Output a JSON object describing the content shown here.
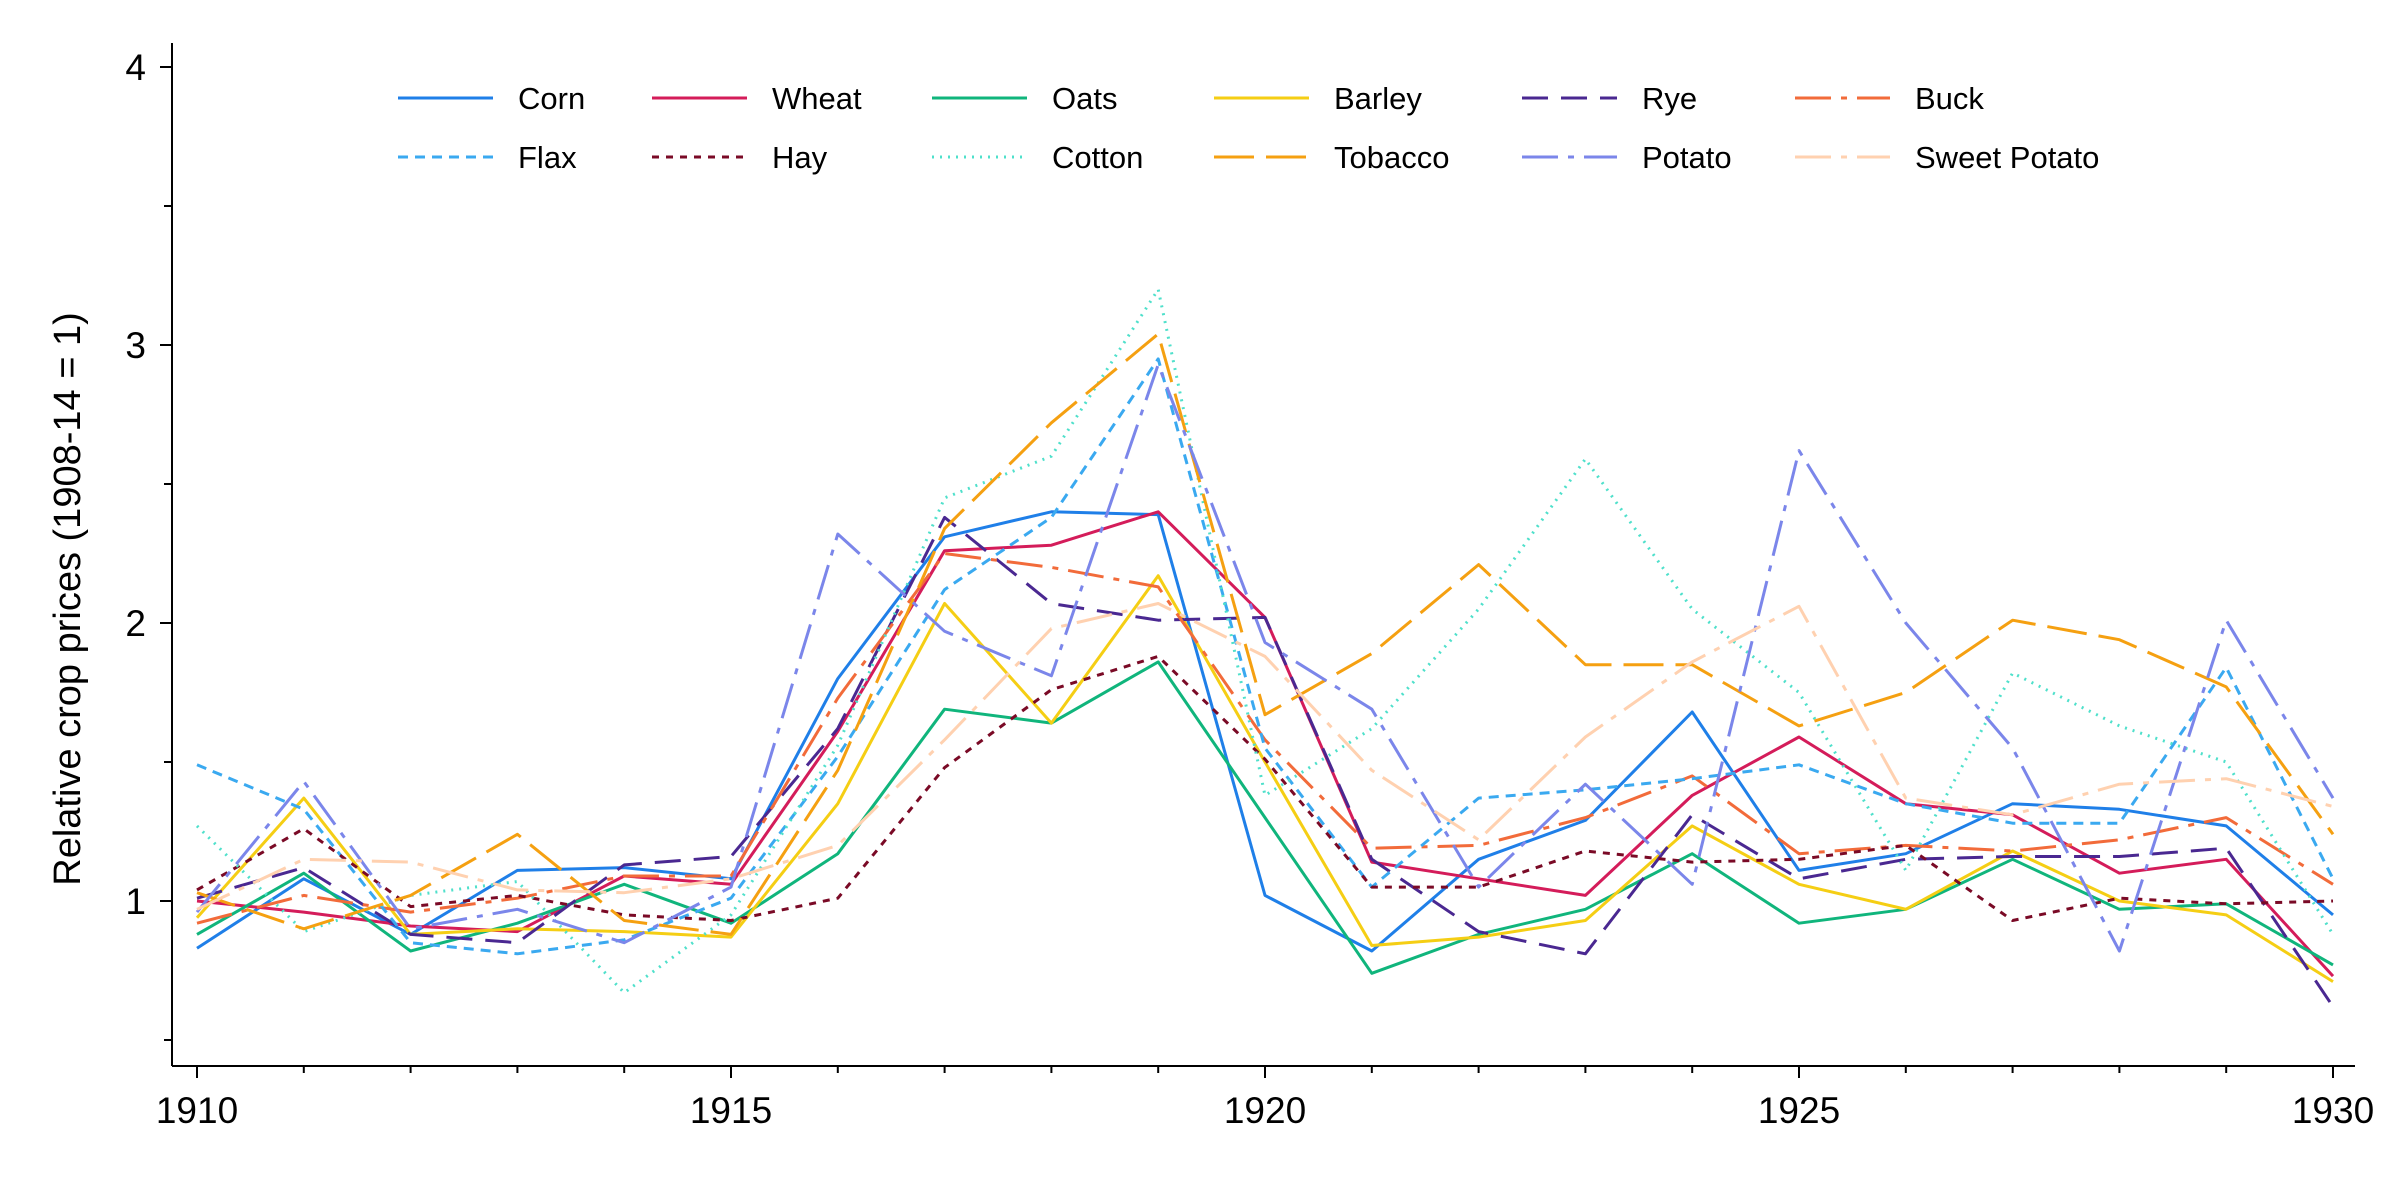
{
  "chart_data": {
    "type": "line",
    "title": "",
    "xlabel": "",
    "ylabel": "Relative crop prices (1908-14 = 1)",
    "xlim": [
      1910,
      1930
    ],
    "ylim": [
      0.4,
      4.1
    ],
    "x_ticks": [
      1910,
      1915,
      1920,
      1925,
      1930
    ],
    "y_ticks": [
      1,
      2,
      3,
      4
    ],
    "grid": false,
    "legend_position": "top",
    "x": [
      1910,
      1911,
      1912,
      1913,
      1914,
      1915,
      1916,
      1917,
      1918,
      1919,
      1920,
      1921,
      1922,
      1923,
      1924,
      1925,
      1926,
      1927,
      1928,
      1929,
      1930
    ],
    "series": [
      {
        "name": "Corn",
        "color": "#1f7fe8",
        "dash": "",
        "values": [
          0.83,
          1.08,
          0.88,
          1.11,
          1.12,
          1.08,
          1.8,
          2.31,
          2.4,
          2.39,
          1.02,
          0.82,
          1.15,
          1.29,
          1.68,
          1.11,
          1.17,
          1.35,
          1.33,
          1.27,
          0.95
        ]
      },
      {
        "name": "Wheat",
        "color": "#d41c5a",
        "dash": "",
        "values": [
          1.0,
          0.96,
          0.91,
          0.89,
          1.09,
          1.06,
          1.61,
          2.26,
          2.28,
          2.4,
          2.02,
          1.14,
          1.08,
          1.02,
          1.38,
          1.59,
          1.35,
          1.31,
          1.1,
          1.15,
          0.73
        ]
      },
      {
        "name": "Oats",
        "color": "#10b57c",
        "dash": "",
        "values": [
          0.88,
          1.1,
          0.82,
          0.92,
          1.06,
          0.92,
          1.17,
          1.69,
          1.64,
          1.86,
          1.3,
          0.74,
          0.88,
          0.97,
          1.17,
          0.92,
          0.97,
          1.15,
          0.97,
          0.99,
          0.77
        ]
      },
      {
        "name": "Barley",
        "color": "#f5ce14",
        "dash": "",
        "values": [
          0.94,
          1.37,
          0.88,
          0.9,
          0.89,
          0.87,
          1.35,
          2.07,
          1.64,
          2.17,
          1.5,
          0.84,
          0.87,
          0.93,
          1.27,
          1.06,
          0.97,
          1.18,
          1.0,
          0.95,
          0.71
        ]
      },
      {
        "name": "Rye",
        "color": "#4a2891",
        "dash": "26 13",
        "values": [
          1.01,
          1.12,
          0.88,
          0.85,
          1.13,
          1.16,
          1.62,
          2.38,
          2.07,
          2.01,
          2.02,
          1.15,
          0.89,
          0.81,
          1.31,
          1.08,
          1.15,
          1.16,
          1.16,
          1.19,
          0.62
        ]
      },
      {
        "name": "Buck",
        "color": "#f26b3a",
        "dash": "36 10 6 10",
        "values": [
          0.92,
          1.02,
          0.96,
          1.01,
          1.09,
          1.09,
          1.73,
          2.25,
          2.2,
          2.13,
          1.58,
          1.19,
          1.2,
          1.3,
          1.45,
          1.17,
          1.2,
          1.18,
          1.22,
          1.3,
          1.06
        ]
      },
      {
        "name": "Flax",
        "color": "#3aa9f0",
        "dash": "10 7",
        "values": [
          1.49,
          1.33,
          0.85,
          0.81,
          0.86,
          1.01,
          1.52,
          2.12,
          2.38,
          2.95,
          1.55,
          1.05,
          1.37,
          1.4,
          1.44,
          1.49,
          1.35,
          1.28,
          1.28,
          1.84,
          1.08
        ]
      },
      {
        "name": "Hay",
        "color": "#7a0a26",
        "dash": "7 7",
        "values": [
          1.04,
          1.26,
          0.98,
          1.02,
          0.95,
          0.93,
          1.01,
          1.48,
          1.76,
          1.88,
          1.51,
          1.05,
          1.05,
          1.18,
          1.14,
          1.15,
          1.2,
          0.93,
          1.01,
          0.99,
          1.0
        ]
      },
      {
        "name": "Cotton",
        "color": "#4fe0cb",
        "dash": "2 6",
        "values": [
          1.27,
          0.89,
          1.02,
          1.07,
          0.67,
          0.95,
          1.56,
          2.45,
          2.6,
          3.2,
          1.38,
          1.62,
          2.05,
          2.59,
          2.05,
          1.75,
          1.11,
          1.82,
          1.63,
          1.5,
          0.88
        ]
      },
      {
        "name": "Tobacco",
        "color": "#f5a011",
        "dash": "40 12",
        "values": [
          1.03,
          0.9,
          1.02,
          1.24,
          0.93,
          0.88,
          1.47,
          2.34,
          2.72,
          3.04,
          1.67,
          1.89,
          2.21,
          1.85,
          1.85,
          1.63,
          1.75,
          2.01,
          1.94,
          1.77,
          1.24
        ]
      },
      {
        "name": "Potato",
        "color": "#7b86ea",
        "dash": "36 10 6 10",
        "values": [
          0.96,
          1.43,
          0.9,
          0.97,
          0.85,
          1.05,
          2.32,
          1.97,
          1.81,
          2.93,
          1.93,
          1.69,
          1.05,
          1.42,
          1.06,
          2.62,
          2.0,
          1.55,
          0.82,
          2.01,
          1.37
        ]
      },
      {
        "name": "Sweet Potato",
        "color": "#ffd1b0",
        "dash": "36 10 6 10",
        "values": [
          0.97,
          1.15,
          1.14,
          1.04,
          1.03,
          1.08,
          1.2,
          1.58,
          1.98,
          2.07,
          1.88,
          1.47,
          1.22,
          1.59,
          1.86,
          2.06,
          1.37,
          1.31,
          1.42,
          1.44,
          1.34
        ]
      }
    ]
  }
}
